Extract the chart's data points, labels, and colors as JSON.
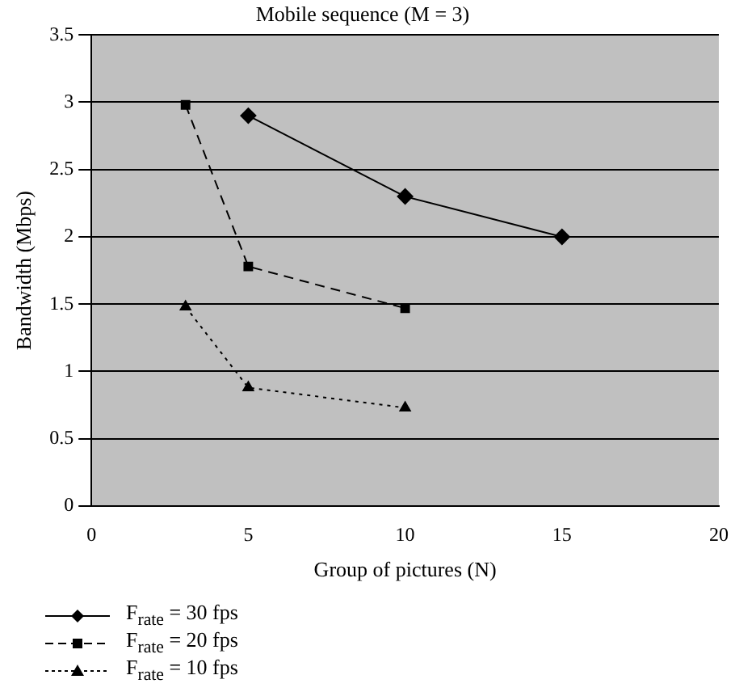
{
  "chart_data": {
    "type": "line",
    "title": "Mobile sequence (M = 3)",
    "xlabel": "Group of pictures (N)",
    "ylabel": "Bandwidth (Mbps)",
    "xlim": [
      0,
      20
    ],
    "xticks": [
      0,
      5,
      10,
      15,
      20
    ],
    "ylim": [
      0,
      3.5
    ],
    "yticks": [
      0,
      0.5,
      1,
      1.5,
      2,
      2.5,
      3,
      3.5
    ],
    "grid": "y",
    "legend": "bottom",
    "series": [
      {
        "name": "F$_{rate}$ = 30 fps",
        "color": "#000000",
        "marker": "diamond",
        "line_style": "solid",
        "x": [
          5,
          10,
          15
        ],
        "values": [
          2.9,
          2.3,
          2.0
        ]
      },
      {
        "name": "F$_{rate}$ = 20 fps",
        "color": "#000000",
        "marker": "square",
        "line_style": "dashed",
        "x": [
          3,
          5,
          10
        ],
        "values": [
          2.98,
          1.78,
          1.47
        ]
      },
      {
        "name": "F$_{rate}$ = 10 fps",
        "color": "#000000",
        "marker": "triangle",
        "line_style": "dotted",
        "x": [
          3,
          5,
          10
        ],
        "values": [
          1.48,
          0.88,
          0.73
        ]
      }
    ]
  }
}
